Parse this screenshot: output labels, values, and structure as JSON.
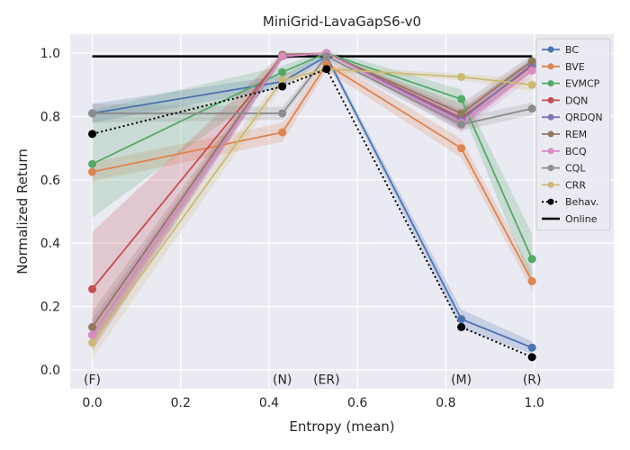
{
  "chart_data": {
    "type": "line",
    "title": "MiniGrid-LavaGapS6-v0",
    "xlabel": "Entropy (mean)",
    "ylabel": "Normalized Return",
    "xlim": [
      -0.05,
      1.18
    ],
    "ylim": [
      -0.06,
      1.06
    ],
    "xticks": [
      0.0,
      0.2,
      0.4,
      0.6,
      0.8,
      1.0
    ],
    "xtick_labels": [
      "0.0",
      "0.2",
      "0.4",
      "0.6",
      "0.8",
      "1.0"
    ],
    "yticks": [
      0.0,
      0.2,
      0.4,
      0.6,
      0.8,
      1.0
    ],
    "ytick_labels": [
      "0.0",
      "0.2",
      "0.4",
      "0.6",
      "0.8",
      "1.0"
    ],
    "grid": true,
    "legend_position": "top-right",
    "x": [
      0.0,
      0.43,
      0.53,
      0.835,
      0.995
    ],
    "annotations": [
      {
        "text": "(F)",
        "x": 0.0,
        "y": -0.03
      },
      {
        "text": "(N)",
        "x": 0.43,
        "y": -0.03
      },
      {
        "text": "(ER)",
        "x": 0.53,
        "y": -0.03
      },
      {
        "text": "(M)",
        "x": 0.835,
        "y": -0.03
      },
      {
        "text": "(R)",
        "x": 0.995,
        "y": -0.03
      }
    ],
    "series": [
      {
        "name": "BC",
        "color": "#4c72b0",
        "values": [
          0.81,
          0.91,
          0.99,
          0.16,
          0.07
        ],
        "spread": [
          0.03,
          0.02,
          0.01,
          0.03,
          0.02
        ]
      },
      {
        "name": "BVE",
        "color": "#dd8452",
        "values": [
          0.625,
          0.75,
          0.965,
          0.7,
          0.28
        ],
        "spread": [
          0.03,
          0.03,
          0.02,
          0.03,
          0.03
        ]
      },
      {
        "name": "EVMCP",
        "color": "#55a868",
        "values": [
          0.65,
          0.94,
          1.0,
          0.855,
          0.35
        ],
        "spread": [
          0.17,
          0.02,
          0.01,
          0.03,
          0.08
        ]
      },
      {
        "name": "DQN",
        "color": "#c44e52",
        "values": [
          0.255,
          0.99,
          1.0,
          0.795,
          0.96
        ],
        "spread": [
          0.18,
          0.01,
          0.0,
          0.03,
          0.02
        ]
      },
      {
        "name": "QRDQN",
        "color": "#8172b3",
        "values": [
          0.11,
          0.99,
          1.0,
          0.79,
          0.965
        ],
        "spread": [
          0.05,
          0.01,
          0.0,
          0.03,
          0.02
        ]
      },
      {
        "name": "REM",
        "color": "#937860",
        "values": [
          0.135,
          0.995,
          1.0,
          0.81,
          0.975
        ],
        "spread": [
          0.05,
          0.01,
          0.0,
          0.03,
          0.02
        ]
      },
      {
        "name": "BCQ",
        "color": "#da8bc3",
        "values": [
          0.11,
          0.99,
          1.0,
          0.78,
          0.945
        ],
        "spread": [
          0.05,
          0.01,
          0.0,
          0.03,
          0.02
        ]
      },
      {
        "name": "CQL",
        "color": "#8c8c8c",
        "values": [
          0.81,
          0.81,
          0.99,
          0.775,
          0.825
        ],
        "spread": [
          0.03,
          0.02,
          0.01,
          0.02,
          0.02
        ]
      },
      {
        "name": "CRR",
        "color": "#ccb974",
        "values": [
          0.085,
          0.915,
          0.95,
          0.925,
          0.9
        ],
        "spread": [
          0.05,
          0.02,
          0.01,
          0.01,
          0.02
        ]
      }
    ],
    "behavior": {
      "name": "Behav.",
      "color": "#000000",
      "values": [
        0.745,
        0.895,
        0.95,
        0.135,
        0.04
      ]
    },
    "online": {
      "name": "Online",
      "color": "#000000",
      "value": 0.99,
      "x_range": [
        0.0,
        0.995
      ]
    }
  }
}
